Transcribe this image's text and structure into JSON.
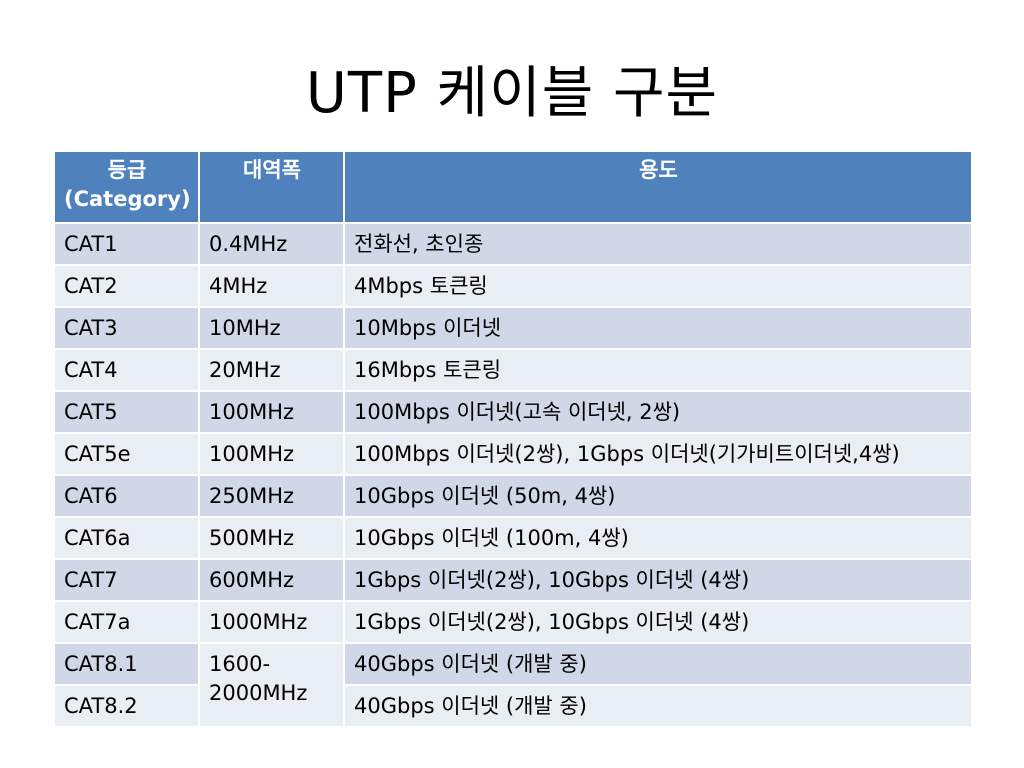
{
  "title": "UTP 케이블 구분",
  "table": {
    "headers": {
      "col1_line1": "등급",
      "col1_line2": "(Category)",
      "col2": "대역폭",
      "col3": "용도"
    },
    "rows": [
      {
        "grade": "CAT1",
        "bandwidth": "0.4MHz",
        "usage": "전화선, 초인종"
      },
      {
        "grade": "CAT2",
        "bandwidth": "4MHz",
        "usage": "4Mbps 토큰링"
      },
      {
        "grade": "CAT3",
        "bandwidth": "10MHz",
        "usage": "10Mbps 이더넷"
      },
      {
        "grade": "CAT4",
        "bandwidth": "20MHz",
        "usage": "16Mbps 토큰링"
      },
      {
        "grade": "CAT5",
        "bandwidth": "100MHz",
        "usage": "100Mbps 이더넷(고속 이더넷, 2쌍)"
      },
      {
        "grade": "CAT5e",
        "bandwidth": "100MHz",
        "usage": "100Mbps 이더넷(2쌍), 1Gbps 이더넷(기가비트이더넷,4쌍)"
      },
      {
        "grade": "CAT6",
        "bandwidth": "250MHz",
        "usage": "10Gbps 이더넷 (50m, 4쌍)"
      },
      {
        "grade": "CAT6a",
        "bandwidth": "500MHz",
        "usage": "10Gbps 이더넷 (100m, 4쌍)"
      },
      {
        "grade": "CAT7",
        "bandwidth": "600MHz",
        "usage": "1Gbps 이더넷(2쌍), 10Gbps 이더넷 (4쌍)"
      },
      {
        "grade": "CAT7a",
        "bandwidth": "1000MHz",
        "usage": "1Gbps 이더넷(2쌍), 10Gbps 이더넷 (4쌍)"
      },
      {
        "grade": "CAT8.1",
        "bandwidth": "1600-2000MHz",
        "usage": "40Gbps 이더넷 (개발 중)"
      },
      {
        "grade": "CAT8.2",
        "usage": "40Gbps 이더넷 (개발 중)"
      }
    ]
  }
}
